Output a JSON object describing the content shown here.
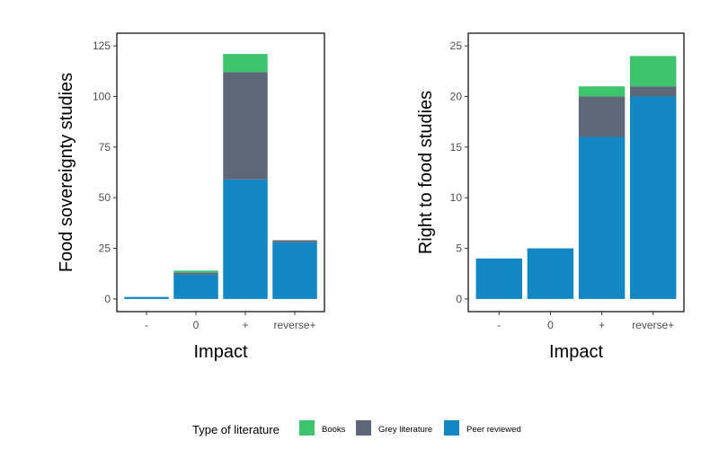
{
  "chart_data": [
    {
      "type": "bar",
      "stacked": true,
      "categories": [
        "-",
        "0",
        "+",
        "reverse+"
      ],
      "series": [
        {
          "name": "Peer reviewed",
          "values": [
            1,
            12,
            59,
            28
          ]
        },
        {
          "name": "Grey literature",
          "values": [
            0,
            1,
            53,
            1
          ]
        },
        {
          "name": "Books",
          "values": [
            0,
            1,
            9,
            0
          ]
        }
      ],
      "xlabel": "Impact",
      "ylabel": "Food sovereignty studies",
      "ylim": [
        0,
        125
      ],
      "yticks": [
        0,
        25,
        50,
        75,
        100,
        125
      ],
      "grid": false
    },
    {
      "type": "bar",
      "stacked": true,
      "categories": [
        "-",
        "0",
        "+",
        "reverse+"
      ],
      "series": [
        {
          "name": "Peer reviewed",
          "values": [
            4,
            5,
            16,
            20
          ]
        },
        {
          "name": "Grey literature",
          "values": [
            0,
            0,
            4,
            1
          ]
        },
        {
          "name": "Books",
          "values": [
            0,
            0,
            1,
            3
          ]
        }
      ],
      "xlabel": "Impact",
      "ylabel": "Right to food studies",
      "ylim": [
        0,
        25
      ],
      "yticks": [
        0,
        5,
        10,
        15,
        20,
        25
      ],
      "grid": false
    }
  ],
  "legend": {
    "title": "Type of literature",
    "position": "bottom",
    "items": [
      {
        "label": "Books",
        "color": "#3ec46d"
      },
      {
        "label": "Grey literature",
        "color": "#5c6878"
      },
      {
        "label": "Peer reviewed",
        "color": "#1287c4"
      }
    ]
  },
  "colors": {
    "Books": "#3ec46d",
    "Grey literature": "#5c6878",
    "Peer reviewed": "#1287c4"
  }
}
